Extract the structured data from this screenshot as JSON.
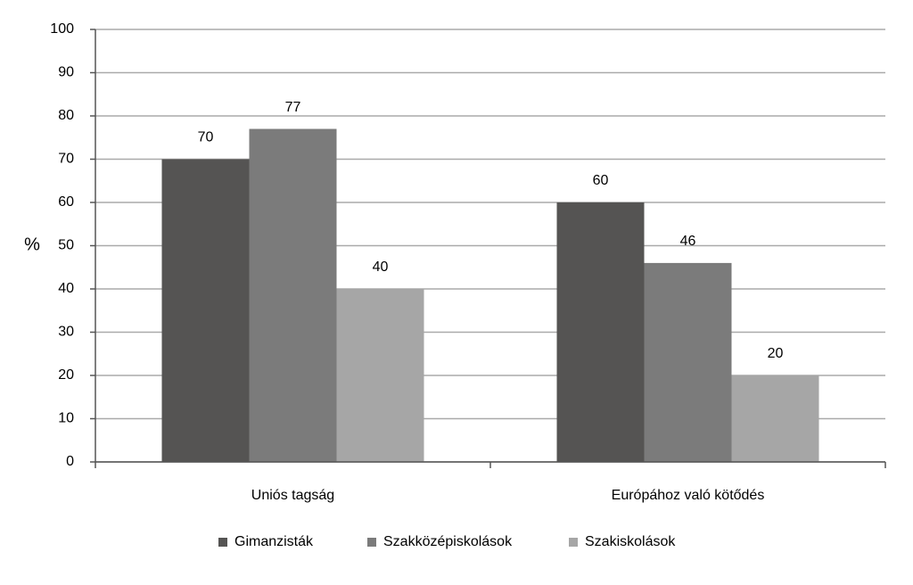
{
  "chart_data": {
    "type": "bar",
    "y_label": "%",
    "categories": [
      "Uniós tagság",
      "Európához való kötődés"
    ],
    "series": [
      {
        "name": "Gimanzisták",
        "color": "#555453",
        "values": [
          70,
          60
        ]
      },
      {
        "name": "Szakközépiskolások",
        "color": "#7b7b7b",
        "values": [
          77,
          46
        ]
      },
      {
        "name": "Szakiskolások",
        "color": "#a6a6a6",
        "values": [
          40,
          20
        ]
      }
    ],
    "ylim": [
      0,
      100
    ],
    "yticks": [
      0,
      10,
      20,
      30,
      40,
      50,
      60,
      70,
      80,
      90,
      100
    ],
    "grid": true,
    "legend": "bottom"
  }
}
